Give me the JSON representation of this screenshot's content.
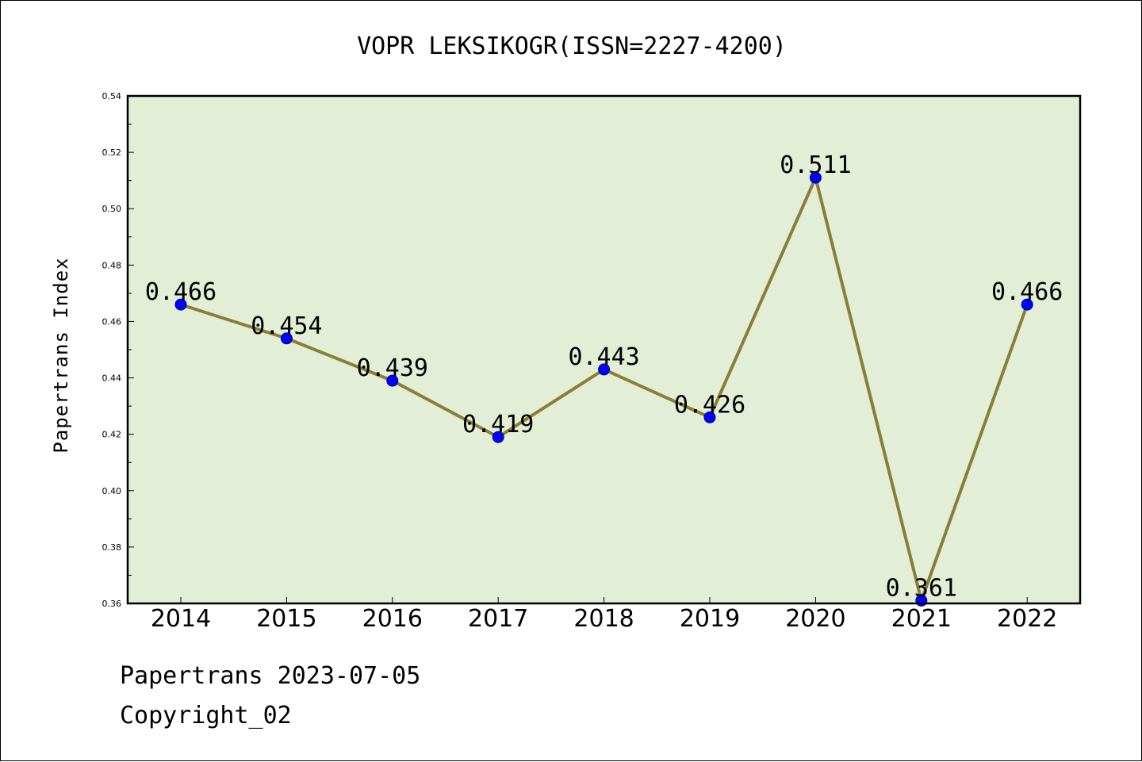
{
  "chart_data": {
    "type": "line",
    "title": "VOPR LEKSIKOGR(ISSN=2227-4200)",
    "xlabel": "",
    "ylabel": "Papertrans Index",
    "categories": [
      "2014",
      "2015",
      "2016",
      "2017",
      "2018",
      "2019",
      "2020",
      "2021",
      "2022"
    ],
    "values": [
      0.466,
      0.454,
      0.439,
      0.419,
      0.443,
      0.426,
      0.511,
      0.361,
      0.466
    ],
    "data_labels": [
      "0.466",
      "0.454",
      "0.439",
      "0.419",
      "0.443",
      "0.426",
      "0.511",
      "0.361",
      "0.466"
    ],
    "ylim": [
      0.36,
      0.54
    ],
    "yticks": [
      "0.36",
      "0.38",
      "0.40",
      "0.42",
      "0.44",
      "0.46",
      "0.48",
      "0.50",
      "0.52",
      "0.54"
    ],
    "grid": false,
    "colors": {
      "plot_background": "#e2efd6",
      "line": "#8b7d35",
      "marker": "#0000ff"
    }
  },
  "footer": {
    "source": "Papertrans 2023-07-05",
    "copyright": "Copyright_02"
  }
}
